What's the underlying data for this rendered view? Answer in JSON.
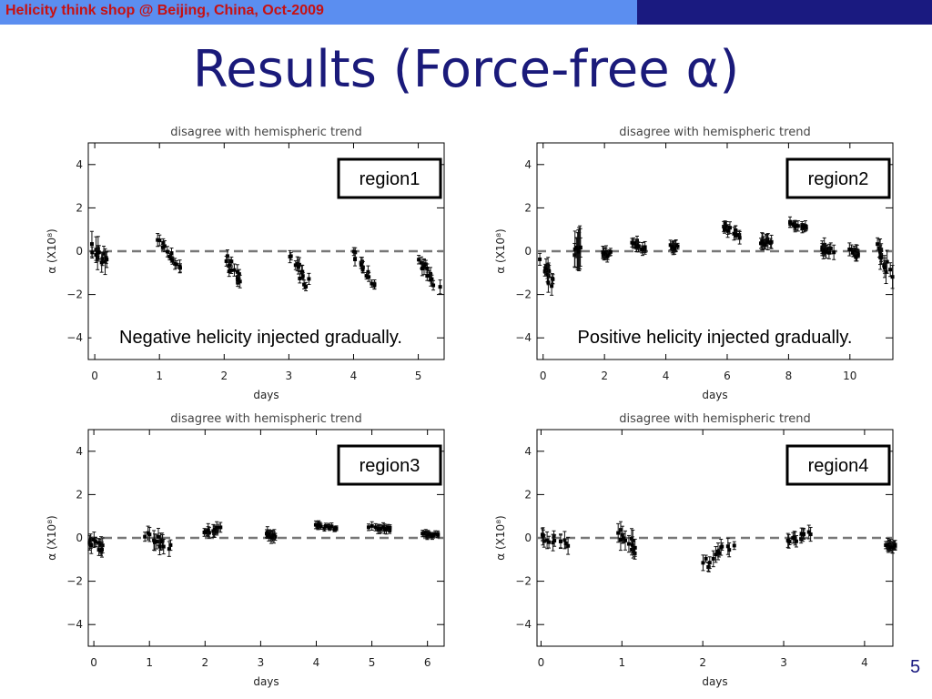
{
  "header": {
    "text": "Helicity think shop @ Beijing, China,  Oct-2009"
  },
  "slide": {
    "title": "Results (Force-free α)",
    "page_number": "5"
  },
  "chart_data": [
    {
      "type": "scatter",
      "title": "disagree with hemispheric trend",
      "xlabel": "days",
      "ylabel": "α (X10⁸)",
      "xlim": [
        -0.1,
        5.4
      ],
      "ylim": [
        -5,
        5
      ],
      "xticks": [
        0,
        1,
        2,
        3,
        4,
        5
      ],
      "yticks": [
        -4,
        -2,
        0,
        2,
        4
      ],
      "reference_line": {
        "y": 0,
        "style": "dashed"
      },
      "region_label": "region1",
      "annotation": "Negative helicity injected gradually.",
      "clusters": [
        {
          "x": [
            0,
            0.15
          ],
          "y": [
            0.2,
            -0.6
          ],
          "scatter": 0.4,
          "err": 0.6
        },
        {
          "x": [
            1.0,
            1.3
          ],
          "y": [
            0.6,
            -0.8
          ],
          "scatter": 0.25,
          "err": 0.3
        },
        {
          "x": [
            2.05,
            2.25
          ],
          "y": [
            -0.3,
            -1.5
          ],
          "scatter": 0.35,
          "err": 0.35
        },
        {
          "x": [
            3.05,
            3.3
          ],
          "y": [
            -0.3,
            -1.5
          ],
          "scatter": 0.35,
          "err": 0.35
        },
        {
          "x": [
            4.0,
            4.3
          ],
          "y": [
            0.0,
            -1.7
          ],
          "scatter": 0.3,
          "err": 0.3
        },
        {
          "x": [
            5.0,
            5.3
          ],
          "y": [
            -0.3,
            -1.6
          ],
          "scatter": 0.3,
          "err": 0.35
        }
      ]
    },
    {
      "type": "scatter",
      "title": "disagree with hemispheric trend",
      "xlabel": "days",
      "ylabel": "α (X10⁸)",
      "xlim": [
        -0.2,
        11.4
      ],
      "ylim": [
        -5,
        5
      ],
      "xticks": [
        0,
        2,
        4,
        6,
        8,
        10
      ],
      "yticks": [
        -4,
        -2,
        0,
        2,
        4
      ],
      "reference_line": {
        "y": 0,
        "style": "dashed"
      },
      "region_label": "region2",
      "annotation": "Positive helicity injected gradually.",
      "clusters": [
        {
          "x": [
            0,
            0.35
          ],
          "y": [
            -0.6,
            -1.4
          ],
          "scatter": 0.5,
          "err": 0.5
        },
        {
          "x": [
            1.1,
            1.2
          ],
          "y": [
            0.0,
            0.0
          ],
          "scatter": 0.4,
          "err": 1.0
        },
        {
          "x": [
            1.9,
            2.15
          ],
          "y": [
            -0.1,
            -0.1
          ],
          "scatter": 0.3,
          "err": 0.3
        },
        {
          "x": [
            2.95,
            3.3
          ],
          "y": [
            0.4,
            0.1
          ],
          "scatter": 0.25,
          "err": 0.3
        },
        {
          "x": [
            4.2,
            4.3
          ],
          "y": [
            0.2,
            0.2
          ],
          "scatter": 0.2,
          "err": 0.3
        },
        {
          "x": [
            5.95,
            6.35
          ],
          "y": [
            1.2,
            0.7
          ],
          "scatter": 0.25,
          "err": 0.3
        },
        {
          "x": [
            7.15,
            7.35
          ],
          "y": [
            0.5,
            0.3
          ],
          "scatter": 0.3,
          "err": 0.4
        },
        {
          "x": [
            8.0,
            8.5
          ],
          "y": [
            1.3,
            1.1
          ],
          "scatter": 0.2,
          "err": 0.25
        },
        {
          "x": [
            9.0,
            9.4
          ],
          "y": [
            0.2,
            -0.1
          ],
          "scatter": 0.3,
          "err": 0.35
        },
        {
          "x": [
            10.1,
            10.3
          ],
          "y": [
            0.1,
            -0.2
          ],
          "scatter": 0.25,
          "err": 0.3
        },
        {
          "x": [
            10.95,
            11.3
          ],
          "y": [
            0.2,
            -1.1
          ],
          "scatter": 0.5,
          "err": 0.6
        }
      ]
    },
    {
      "type": "scatter",
      "title": "disagree with hemispheric trend",
      "xlabel": "days",
      "ylabel": "α (X10⁸)",
      "xlim": [
        -0.1,
        6.3
      ],
      "ylim": [
        -5,
        5
      ],
      "xticks": [
        0,
        1,
        2,
        3,
        4,
        5,
        6
      ],
      "yticks": [
        -4,
        -2,
        0,
        2,
        4
      ],
      "reference_line": {
        "y": 0,
        "style": "dashed"
      },
      "region_label": "region3",
      "clusters": [
        {
          "x": [
            -0.05,
            0.15
          ],
          "y": [
            -0.1,
            -0.5
          ],
          "scatter": 0.35,
          "err": 0.4
        },
        {
          "x": [
            0.95,
            1.35
          ],
          "y": [
            0.1,
            -0.4
          ],
          "scatter": 0.4,
          "err": 0.5
        },
        {
          "x": [
            1.95,
            2.3
          ],
          "y": [
            0.2,
            0.5
          ],
          "scatter": 0.3,
          "err": 0.3
        },
        {
          "x": [
            3.1,
            3.25
          ],
          "y": [
            0.2,
            0.1
          ],
          "scatter": 0.25,
          "err": 0.3
        },
        {
          "x": [
            4.0,
            4.35
          ],
          "y": [
            0.6,
            0.4
          ],
          "scatter": 0.15,
          "err": 0.2
        },
        {
          "x": [
            5.0,
            5.35
          ],
          "y": [
            0.5,
            0.4
          ],
          "scatter": 0.15,
          "err": 0.25
        },
        {
          "x": [
            5.95,
            6.15
          ],
          "y": [
            0.2,
            0.1
          ],
          "scatter": 0.15,
          "err": 0.2
        }
      ]
    },
    {
      "type": "scatter",
      "title": "disagree with hemispheric trend",
      "xlabel": "days",
      "ylabel": "α (X10⁸)",
      "xlim": [
        -0.05,
        4.35
      ],
      "ylim": [
        -5,
        5
      ],
      "xticks": [
        0,
        1,
        2,
        3,
        4
      ],
      "yticks": [
        -4,
        -2,
        0,
        2,
        4
      ],
      "reference_line": {
        "y": 0,
        "style": "dashed"
      },
      "region_label": "region4",
      "clusters": [
        {
          "x": [
            0.0,
            0.3
          ],
          "y": [
            0.0,
            -0.2
          ],
          "scatter": 0.35,
          "err": 0.4
        },
        {
          "x": [
            0.95,
            1.2
          ],
          "y": [
            0.2,
            -0.6
          ],
          "scatter": 0.4,
          "err": 0.5
        },
        {
          "x": [
            2.0,
            2.35
          ],
          "y": [
            -1.3,
            -0.3
          ],
          "scatter": 0.45,
          "err": 0.4
        },
        {
          "x": [
            3.05,
            3.3
          ],
          "y": [
            -0.2,
            0.2
          ],
          "scatter": 0.3,
          "err": 0.35
        },
        {
          "x": [
            4.3,
            4.35
          ],
          "y": [
            -0.4,
            -0.4
          ],
          "scatter": 0.2,
          "err": 0.3
        }
      ]
    }
  ]
}
